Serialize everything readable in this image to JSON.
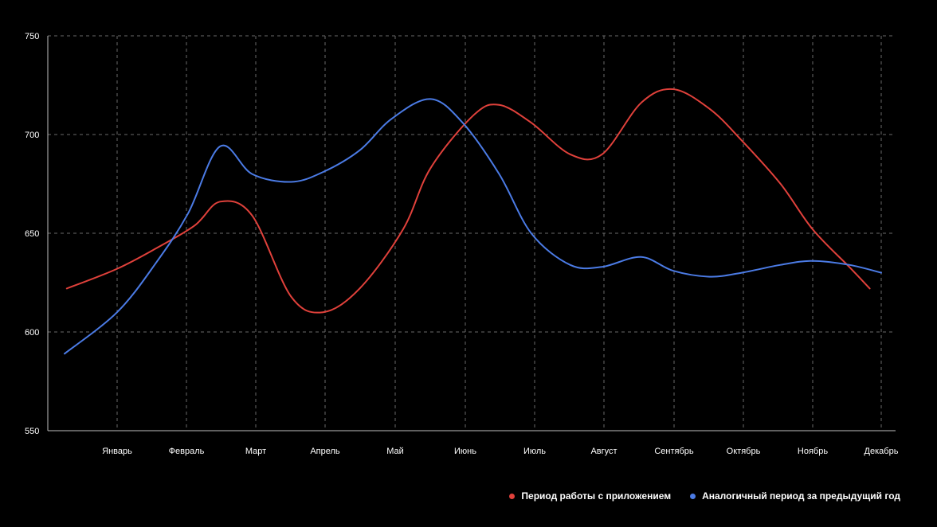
{
  "chart_data": {
    "type": "line",
    "title": "",
    "xlabel": "",
    "ylabel": "",
    "categories": [
      "Январь",
      "Февраль",
      "Март",
      "Апрель",
      "Май",
      "Июнь",
      "Июль",
      "Август",
      "Сентябрь",
      "Октябрь",
      "Ноябрь",
      "Декабрь"
    ],
    "ylim": [
      550,
      750
    ],
    "yticks": [
      "550",
      "600",
      "650",
      "700",
      "750"
    ],
    "grid": true,
    "legend_position": "bottom-right",
    "background_color": "#000000",
    "series": [
      {
        "name": "Период работы с приложением",
        "color": "#e0413b",
        "x": [
          "2025-12-24",
          "2026-01-15",
          "2026-02-02",
          "2026-02-18",
          "2026-03-01",
          "2026-03-15",
          "2026-04-01",
          "2026-04-15",
          "2026-05-01",
          "2026-05-20",
          "2026-06-01",
          "2026-06-20",
          "2026-07-01",
          "2026-07-15",
          "2026-08-01",
          "2026-08-15",
          "2026-09-01",
          "2026-09-15",
          "2026-10-01",
          "2026-10-15",
          "2026-11-01",
          "2026-11-15",
          "2026-12-01",
          "2026-12-10"
        ],
        "values": [
          622,
          632,
          643,
          654,
          666,
          659,
          618,
          610,
          622,
          652,
          683,
          710,
          715,
          706,
          690,
          690,
          716,
          723,
          713,
          697,
          675,
          652,
          633,
          622
        ]
      },
      {
        "name": "Аналогичный период за предыдущий год",
        "color": "#4b7be5",
        "x": [
          "2025-12-23",
          "2026-01-15",
          "2026-02-01",
          "2026-02-15",
          "2026-03-01",
          "2026-03-15",
          "2026-04-01",
          "2026-04-15",
          "2026-05-01",
          "2026-05-15",
          "2026-06-01",
          "2026-06-15",
          "2026-07-01",
          "2026-07-15",
          "2026-08-01",
          "2026-08-15",
          "2026-09-01",
          "2026-09-15",
          "2026-10-01",
          "2026-10-15",
          "2026-11-01",
          "2026-11-15",
          "2026-12-01",
          "2026-12-15"
        ],
        "values": [
          589,
          610,
          635,
          660,
          694,
          680,
          676,
          681,
          692,
          708,
          718,
          706,
          680,
          650,
          634,
          633,
          638,
          631,
          628,
          630,
          634,
          636,
          634,
          630
        ]
      }
    ]
  }
}
